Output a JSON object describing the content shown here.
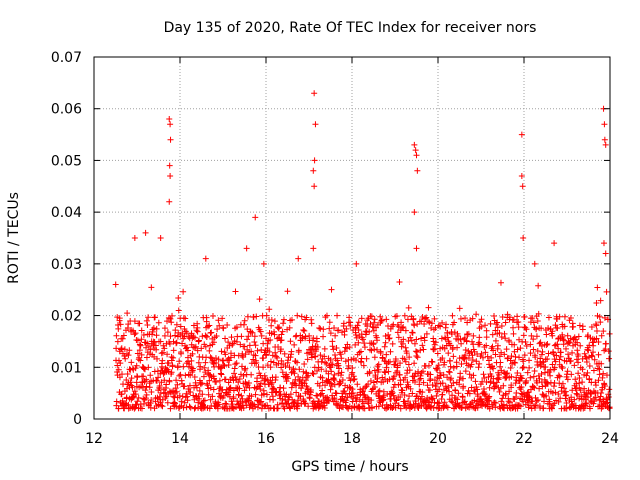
{
  "chart_data": {
    "type": "scatter",
    "title": "Day 135 of 2020, Rate Of TEC Index for receiver nors",
    "xlabel": "GPS time / hours",
    "ylabel": "ROTI / TECUs",
    "xlim": [
      12,
      24
    ],
    "ylim": [
      0,
      0.07
    ],
    "x_ticks": [
      12,
      14,
      16,
      18,
      20,
      22,
      24
    ],
    "x_tick_labels": [
      "12",
      "14",
      "16",
      "18",
      "20",
      "22",
      "24"
    ],
    "y_ticks": [
      0,
      0.01,
      0.02,
      0.03,
      0.04,
      0.05,
      0.06,
      0.07
    ],
    "y_tick_labels": [
      "0",
      "0.01",
      "0.02",
      "0.03",
      "0.04",
      "0.05",
      "0.06",
      "0.07"
    ],
    "grid": true,
    "marker": "+",
    "color": "#ff0000",
    "series": [
      {
        "name": "ROTI",
        "x_range": [
          12.5,
          24
        ],
        "typical_range": [
          0.002,
          0.02
        ],
        "notable_points": [
          {
            "x": 12.95,
            "y": 0.035
          },
          {
            "x": 13.2,
            "y": 0.036
          },
          {
            "x": 13.55,
            "y": 0.035
          },
          {
            "x": 13.75,
            "y": 0.058
          },
          {
            "x": 13.77,
            "y": 0.057
          },
          {
            "x": 13.78,
            "y": 0.054
          },
          {
            "x": 13.76,
            "y": 0.049
          },
          {
            "x": 13.77,
            "y": 0.047
          },
          {
            "x": 13.75,
            "y": 0.042
          },
          {
            "x": 14.6,
            "y": 0.031
          },
          {
            "x": 15.55,
            "y": 0.033
          },
          {
            "x": 15.75,
            "y": 0.039
          },
          {
            "x": 15.95,
            "y": 0.03
          },
          {
            "x": 16.75,
            "y": 0.031
          },
          {
            "x": 17.12,
            "y": 0.063
          },
          {
            "x": 17.15,
            "y": 0.057
          },
          {
            "x": 17.13,
            "y": 0.05
          },
          {
            "x": 17.1,
            "y": 0.048
          },
          {
            "x": 17.12,
            "y": 0.045
          },
          {
            "x": 17.1,
            "y": 0.033
          },
          {
            "x": 18.1,
            "y": 0.03
          },
          {
            "x": 19.45,
            "y": 0.053
          },
          {
            "x": 19.48,
            "y": 0.052
          },
          {
            "x": 19.5,
            "y": 0.051
          },
          {
            "x": 19.52,
            "y": 0.048
          },
          {
            "x": 19.45,
            "y": 0.04
          },
          {
            "x": 19.5,
            "y": 0.033
          },
          {
            "x": 21.95,
            "y": 0.055
          },
          {
            "x": 21.95,
            "y": 0.047
          },
          {
            "x": 21.97,
            "y": 0.045
          },
          {
            "x": 21.98,
            "y": 0.035
          },
          {
            "x": 22.25,
            "y": 0.03
          },
          {
            "x": 22.7,
            "y": 0.034
          },
          {
            "x": 23.85,
            "y": 0.06
          },
          {
            "x": 23.87,
            "y": 0.057
          },
          {
            "x": 23.88,
            "y": 0.054
          },
          {
            "x": 23.9,
            "y": 0.053
          },
          {
            "x": 23.86,
            "y": 0.034
          },
          {
            "x": 23.9,
            "y": 0.032
          }
        ]
      }
    ]
  }
}
